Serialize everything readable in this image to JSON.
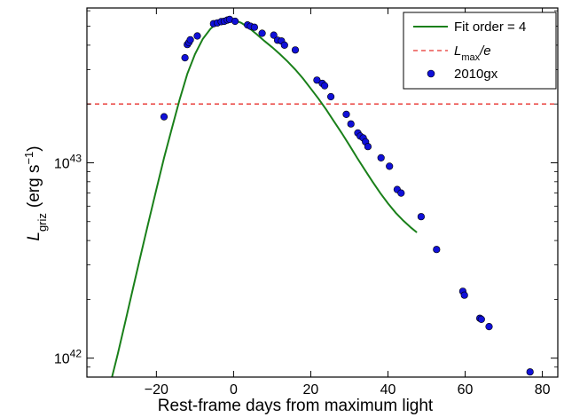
{
  "chart_data": {
    "type": "scatter",
    "title": "",
    "xlabel": "Rest-frame days from maximum light",
    "ylabel": {
      "main": "L",
      "sub": "griz",
      "unit_open": "(erg s",
      "unit_exp": "−1",
      "unit_close": ")"
    },
    "y_scale": "log",
    "xlim": [
      -38,
      84
    ],
    "ylim": [
      8e+41,
      6.2e+43
    ],
    "grid": false,
    "legend_position": "top-right",
    "x_ticks": [
      {
        "value": -20,
        "label": "−20"
      },
      {
        "value": 0,
        "label": "0"
      },
      {
        "value": 20,
        "label": "20"
      },
      {
        "value": 40,
        "label": "40"
      },
      {
        "value": 60,
        "label": "60"
      },
      {
        "value": 80,
        "label": "80"
      }
    ],
    "y_ticks": [
      {
        "value": 1e+42,
        "base": "10",
        "exp": "42"
      },
      {
        "value": 1e+43,
        "base": "10",
        "exp": "43"
      }
    ],
    "series": [
      {
        "name": "Fit order = 4",
        "kind": "line",
        "color": "#1a801a",
        "x": [
          -31.5,
          -30,
          -28,
          -26,
          -24,
          -22,
          -20,
          -18,
          -16,
          -14,
          -12,
          -10,
          -8,
          -6,
          -4,
          -2,
          0,
          2,
          4,
          6,
          8,
          10,
          12,
          14,
          16,
          18,
          20,
          22,
          24,
          26,
          28,
          30,
          32,
          34,
          36,
          38,
          40,
          42,
          44,
          46,
          47.5
        ],
        "y": [
          8e+41,
          1.05e+42,
          1.55e+42,
          2.3e+42,
          3.4e+42,
          5e+42,
          7.3e+42,
          1.06e+43,
          1.5e+43,
          2.1e+43,
          2.85e+43,
          3.6e+43,
          4.3e+43,
          4.85e+43,
          5.25e+43,
          5.45e+43,
          5.4e+43,
          5.2e+43,
          4.9e+43,
          4.55e+43,
          4.2e+43,
          3.9e+43,
          3.6e+43,
          3.3e+43,
          3e+43,
          2.7e+43,
          2.4e+43,
          2.13e+43,
          1.87e+43,
          1.63e+43,
          1.42e+43,
          1.23e+43,
          1.06e+43,
          9.2e+42,
          8e+42,
          7e+42,
          6.2e+42,
          5.55e+42,
          5.05e+42,
          4.65e+42,
          4.4e+42
        ]
      },
      {
        "name": "L_max/e",
        "label_main": "L",
        "label_sub": "max",
        "label_tail": "/e",
        "kind": "hline",
        "color": "#e8302c",
        "y": 2e+43
      },
      {
        "name": "2010gx",
        "kind": "scatter",
        "color": "#1010d8",
        "x": [
          -18.0,
          -12.6,
          -12.0,
          -11.6,
          -11.2,
          -9.4,
          -5.2,
          -4.2,
          -3.2,
          -2.4,
          -1.6,
          -1.0,
          0.4,
          3.6,
          4.4,
          5.4,
          7.4,
          10.4,
          11.4,
          12.4,
          13.2,
          16.0,
          21.6,
          23.0,
          23.6,
          25.2,
          29.2,
          30.4,
          32.2,
          32.8,
          33.6,
          34.2,
          34.8,
          38.2,
          40.4,
          42.4,
          43.4,
          48.6,
          52.6,
          59.4,
          59.8,
          63.8,
          64.2,
          66.2,
          76.8
        ],
        "y": [
          1.72e+43,
          3.45e+43,
          4.03e+43,
          4.13e+43,
          4.26e+43,
          4.46e+43,
          5.15e+43,
          5.2e+43,
          5.28e+43,
          5.3e+43,
          5.38e+43,
          5.42e+43,
          5.3e+43,
          5.08e+43,
          5e+43,
          4.94e+43,
          4.6e+43,
          4.5e+43,
          4.24e+43,
          4.2e+43,
          4e+43,
          3.78e+43,
          2.65e+43,
          2.55e+43,
          2.48e+43,
          2.18e+43,
          1.77e+43,
          1.58e+43,
          1.42e+43,
          1.37e+43,
          1.34e+43,
          1.28e+43,
          1.21e+43,
          1.06e+43,
          9.6e+42,
          7.3e+42,
          7e+42,
          5.3e+42,
          3.6e+42,
          2.2e+42,
          2.1e+42,
          1.6e+42,
          1.58e+42,
          1.45e+42,
          8.5e+41
        ]
      }
    ]
  }
}
